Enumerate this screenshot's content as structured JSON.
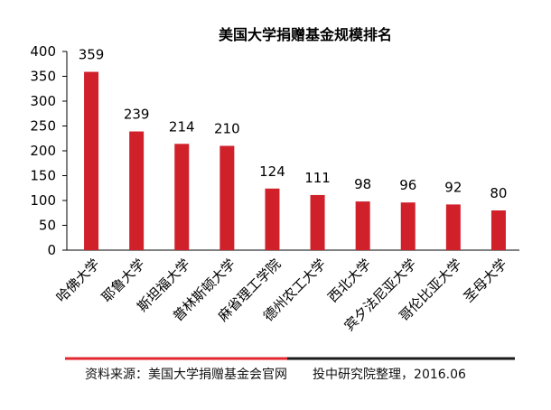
{
  "colors": {
    "bar": "#d0212b",
    "axis": "#000000",
    "divider_left": "#e3262f",
    "divider_right": "#1a1a1a"
  },
  "chart_data": {
    "type": "bar",
    "title": "美国大学捐赠基金规模排名",
    "xlabel": "",
    "ylabel": "",
    "categories": [
      "哈佛大学",
      "耶鲁大学",
      "斯坦福大学",
      "普林斯顿大学",
      "麻省理工学院",
      "德州农工大学",
      "西北大学",
      "宾夕法尼亚大学",
      "哥伦比亚大学",
      "圣母大学"
    ],
    "values": [
      359,
      239,
      214,
      210,
      124,
      111,
      98,
      96,
      92,
      80
    ],
    "ylim": [
      0,
      400
    ],
    "yticks": [
      0,
      50,
      100,
      150,
      200,
      250,
      300,
      350,
      400
    ],
    "grid": false,
    "legend": "none",
    "data_labels": true
  },
  "footer": {
    "source": "资料来源：美国大学捐赠基金会官网",
    "credit": "投中研究院整理，2016.06"
  }
}
